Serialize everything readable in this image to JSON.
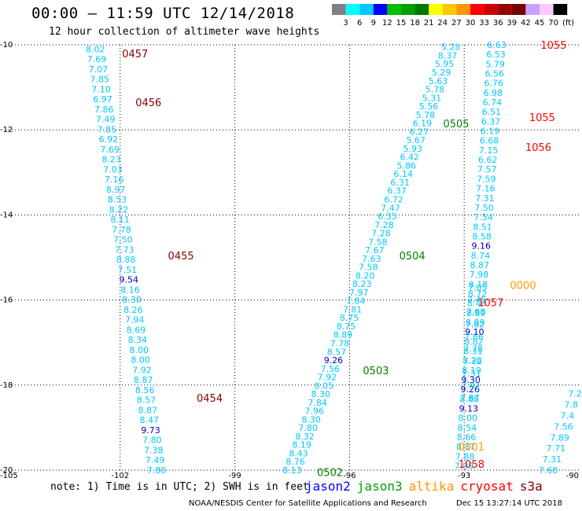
{
  "header": {
    "title": "00:00 – 11:59 UTC 12/14/2018",
    "subtitle": "12 hour collection of altimeter wave heights"
  },
  "colorbar": {
    "unit": "(ft)",
    "ticks": [
      "3",
      "6",
      "9",
      "12",
      "15",
      "18",
      "21",
      "24",
      "27",
      "30",
      "33",
      "36",
      "39",
      "42",
      "45",
      "70"
    ],
    "colors": [
      "#808080",
      "#00ffff",
      "#00c8ff",
      "#0000ff",
      "#00c000",
      "#00a000",
      "#007800",
      "#ffff00",
      "#ffc800",
      "#ff9600",
      "#ff0000",
      "#c80000",
      "#960000",
      "#780000",
      "#c8a0ff",
      "#ffc8ff",
      "#000000"
    ]
  },
  "axes": {
    "x_ticks": [
      "-105",
      "-102",
      "-99",
      "-96",
      "-93",
      "-90"
    ],
    "y_ticks": [
      "-10",
      "-12",
      "-14",
      "-16",
      "-18",
      "-20"
    ]
  },
  "map": {
    "time_labels": [
      {
        "text": "0457",
        "lon": -101.95,
        "lat": -10.2,
        "color": "#800000"
      },
      {
        "text": "0456",
        "lon": -101.6,
        "lat": -11.35,
        "color": "#800000"
      },
      {
        "text": "0455",
        "lon": -100.75,
        "lat": -14.95,
        "color": "#800000"
      },
      {
        "text": "0454",
        "lon": -100.0,
        "lat": -18.3,
        "color": "#800000"
      },
      {
        "text": "1055",
        "lon": -91.0,
        "lat": -10.0,
        "color": "#ff0000"
      },
      {
        "text": "1055",
        "lon": -91.3,
        "lat": -11.7,
        "color": "#ff0000"
      },
      {
        "text": "1056",
        "lon": -91.4,
        "lat": -12.4,
        "color": "#ff0000"
      },
      {
        "text": "1057",
        "lon": -92.65,
        "lat": -16.05,
        "color": "#ff0000"
      },
      {
        "text": "1058",
        "lon": -93.15,
        "lat": -19.85,
        "color": "#ff0000"
      },
      {
        "text": "0505",
        "lon": -93.55,
        "lat": -11.85,
        "color": "#008000"
      },
      {
        "text": "0504",
        "lon": -94.7,
        "lat": -14.95,
        "color": "#008000"
      },
      {
        "text": "0503",
        "lon": -95.65,
        "lat": -17.65,
        "color": "#008000"
      },
      {
        "text": "0502",
        "lon": -96.85,
        "lat": -20.05,
        "color": "#008000"
      },
      {
        "text": "0000",
        "lon": -91.8,
        "lat": -15.65,
        "color": "#ff9600"
      },
      {
        "text": "0001",
        "lon": -93.15,
        "lat": -19.45,
        "color": "#ff9600"
      }
    ],
    "tracks": [
      {
        "name": "track-s3a-descending",
        "color": "#00c8ff",
        "lon_start": -102.65,
        "lat_start": -10.1,
        "lon_end": -101.05,
        "lat_end": -20.0,
        "values": [
          "8.02",
          "7.69",
          "7.07",
          "7.85",
          "7.10",
          "6.97",
          "7.86",
          "7.49",
          "7.85",
          "6.92",
          "7.69",
          "8.23",
          "7.03",
          "7.16",
          "8.97",
          "8.53",
          "8.22",
          "8.11",
          "7.78",
          "7.50",
          "7.73",
          "8.88",
          "7.51",
          "9.54",
          "8.16",
          "8.30",
          "8.26",
          "7.94",
          "8.69",
          "8.34",
          "8.00",
          "8.00",
          "7.92",
          "8.87",
          "8.56",
          "8.57",
          "8.87",
          "8.47",
          "9.73",
          "7.80",
          "7.38",
          "7.49",
          "7.80"
        ],
        "blue": [
          "9.54",
          "9.73"
        ]
      },
      {
        "name": "track-jason3-ascending",
        "color": "#00c8ff",
        "lon_start": -97.5,
        "lat_start": -20.0,
        "lon_end": -93.35,
        "lat_end": -10.05,
        "values": [
          "8.13",
          "8.76",
          "8.43",
          "8.19",
          "8.32",
          "7.80",
          "8.30",
          "7.96",
          "7.84",
          "8.30",
          "8.05",
          "7.92",
          "7.56",
          "9.26",
          "8.57",
          "7.78",
          "8.89",
          "8.75",
          "8.75",
          "7.81",
          "7.84",
          "7.97",
          "8.23",
          "8.20",
          "7.58",
          "7.63",
          "7.67",
          "7.58",
          "7.28",
          "7.28",
          "6.35",
          "7.47",
          "6.72",
          "6.37",
          "6.31",
          "6.14",
          "5.86",
          "6.42",
          "5.93",
          "5.67",
          "6.27",
          "6.19",
          "5.78",
          "5.56",
          "5.31",
          "5.78",
          "5.63",
          "5.29",
          "5.95",
          "8.37",
          "5.28"
        ],
        "blue": [
          "9.26"
        ]
      },
      {
        "name": "track-cryosat-descending",
        "color": "#00c8ff",
        "lon_start": -92.15,
        "lat_start": -10.0,
        "lon_end": -93.0,
        "lat_end": -19.9,
        "values": [
          "6.63",
          "6.53",
          "5.79",
          "6.56",
          "6.76",
          "6.98",
          "6.74",
          "6.51",
          "6.37",
          "6.19",
          "6.68",
          "7.15",
          "6.62",
          "7.57",
          "7.59",
          "7.16",
          "7.31",
          "7.50",
          "7.54",
          "8.51",
          "8.58",
          "9.16",
          "8.74",
          "8.87",
          "7.98",
          "8.18",
          "8.72",
          "8.48",
          "8.89",
          "8.89",
          "9.10",
          "8.82",
          "8.31",
          "8.26",
          "8.19",
          "9.30",
          "9.26",
          "8.88",
          "9.13",
          "8.00",
          "8.54",
          "8.66",
          "8.37",
          "7.88",
          "7.99"
        ],
        "blue": [
          "9.16",
          "9.10",
          "9.30",
          "9.26",
          "9.13"
        ]
      },
      {
        "name": "track-altika-descending",
        "color": "#00c8ff",
        "lon_start": -92.65,
        "lat_start": -15.7,
        "lon_end": -92.85,
        "lat_end": -18.3,
        "values": [
          "7.05",
          "7.45",
          "7.68",
          "7.82",
          "7.66",
          "7.78",
          "7.32",
          "7.31",
          "7.92",
          "7.87"
        ],
        "blue": []
      },
      {
        "name": "track-edge-ascending",
        "color": "#00c8ff",
        "lon_start": -90.8,
        "lat_start": -20.0,
        "lon_end": -90.1,
        "lat_end": -18.2,
        "values": [
          "7.68",
          "7.31",
          "7.71",
          "7.89",
          "7.56",
          "7.4",
          "7.8",
          "7.2"
        ],
        "blue": []
      }
    ]
  },
  "footer": {
    "note": "note: 1) Time is in UTC; 2) SWH is in feet",
    "legend": [
      {
        "label": "jason2",
        "color": "#0000ff"
      },
      {
        "label": "jason3",
        "color": "#00a000"
      },
      {
        "label": "altika",
        "color": "#ff9600"
      },
      {
        "label": "cryosat",
        "color": "#ff0000"
      },
      {
        "label": "s3a",
        "color": "#800000"
      }
    ],
    "credit": "NOAA/NESDIS Center for Satellite Applications and Research",
    "timestamp": "Dec 15 13:27:14 UTC 2018"
  }
}
